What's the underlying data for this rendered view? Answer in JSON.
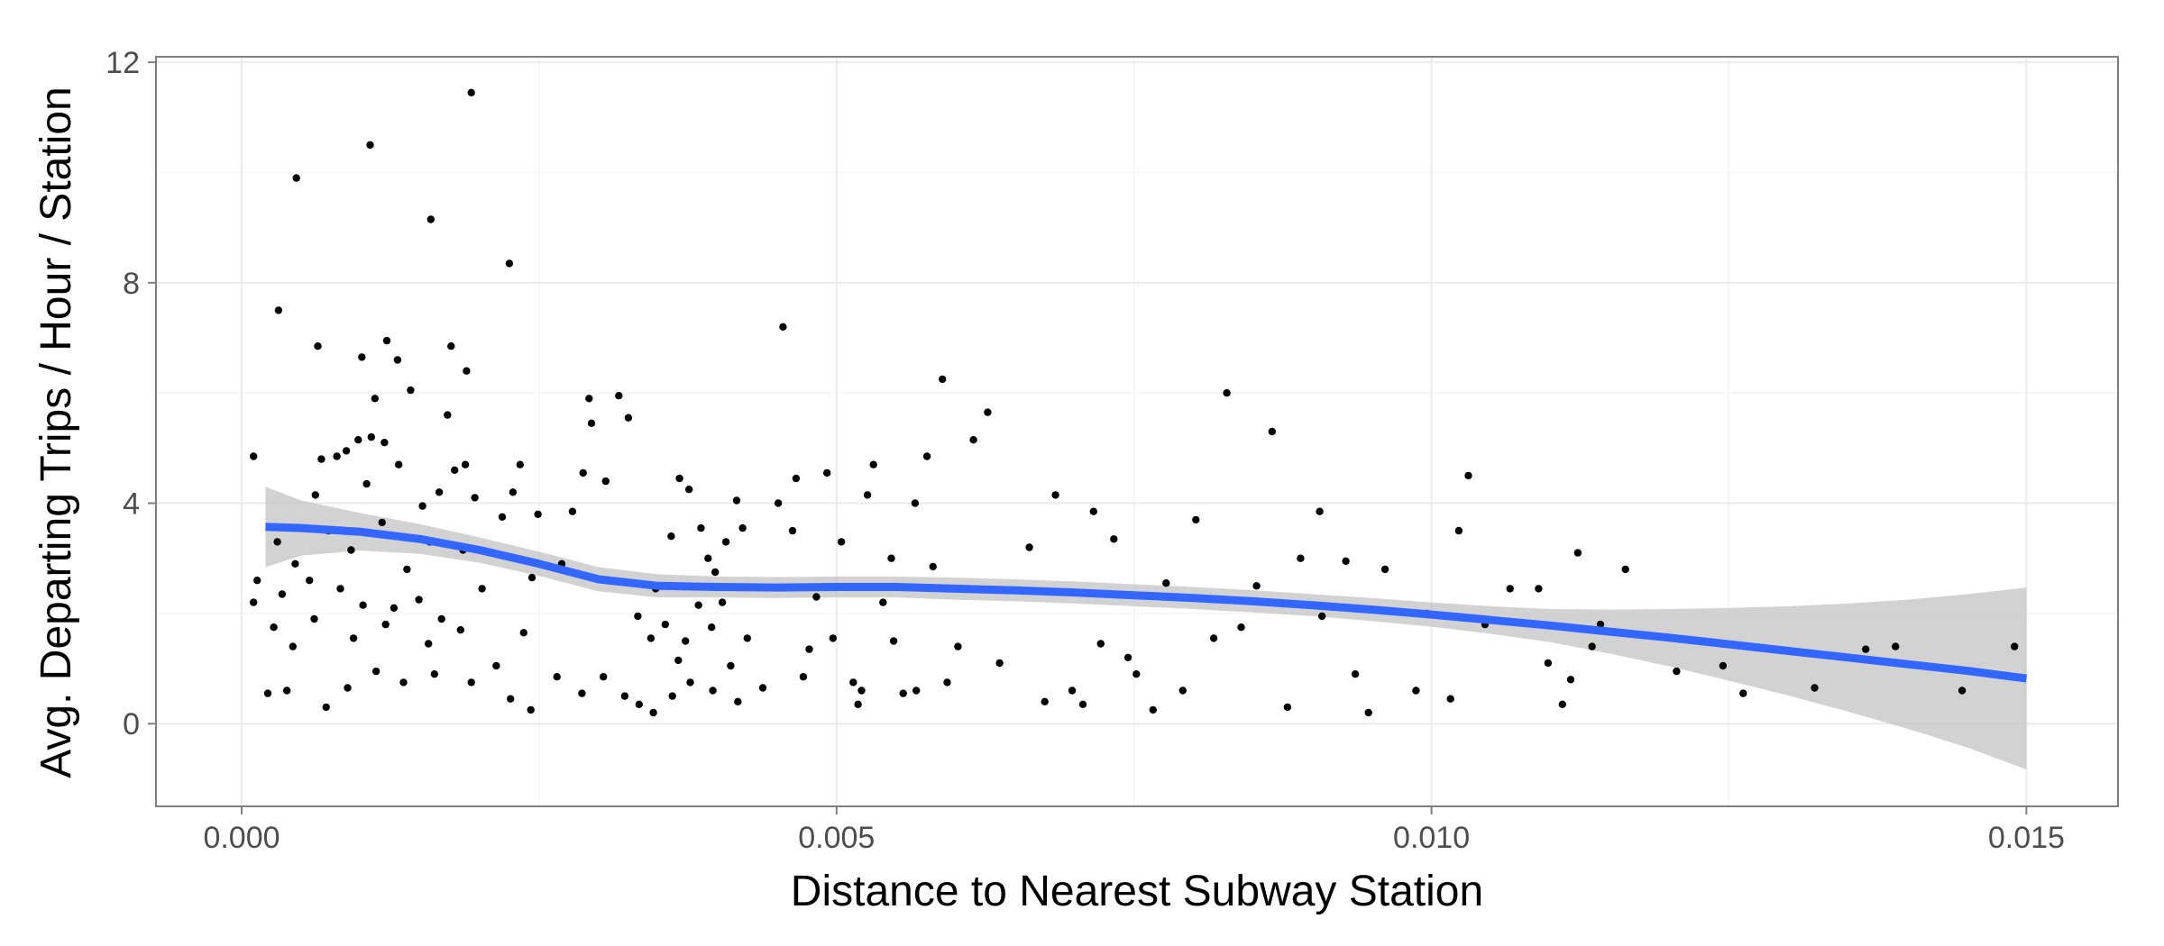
{
  "chart_data": {
    "type": "scatter",
    "title": "",
    "xlabel": "Distance to Nearest Subway Station",
    "ylabel": "Avg. Departing Trips / Hour / Station",
    "xlim": [
      -0.00072,
      0.01577
    ],
    "ylim": [
      -1.5,
      12.1
    ],
    "x_ticks": [
      0.0,
      0.005,
      0.01,
      0.015
    ],
    "x_tick_labels": [
      "0.000",
      "0.005",
      "0.010",
      "0.015"
    ],
    "y_ticks": [
      0,
      4,
      8,
      12
    ],
    "y_tick_labels": [
      "0",
      "4",
      "8",
      "12"
    ],
    "grid": true,
    "legend": "none",
    "colors": {
      "points": "#000000",
      "smooth_line": "#3366FF",
      "confidence_band": "#bfbfbf",
      "grid_major": "#ebebeb",
      "grid_minor": "#f5f5f5",
      "panel_border": "#7f7f7f"
    },
    "points": [
      [
        0.00046,
        9.9
      ],
      [
        0.00108,
        10.5
      ],
      [
        0.00193,
        11.45
      ],
      [
        0.00159,
        9.15
      ],
      [
        0.00225,
        8.35
      ],
      [
        0.00031,
        7.5
      ],
      [
        0.00064,
        6.85
      ],
      [
        0.00176,
        6.85
      ],
      [
        0.00122,
        6.95
      ],
      [
        0.00101,
        6.65
      ],
      [
        0.00131,
        6.6
      ],
      [
        0.00189,
        6.4
      ],
      [
        0.00112,
        5.9
      ],
      [
        0.00173,
        5.6
      ],
      [
        0.00294,
        5.45
      ],
      [
        0.00317,
        5.95
      ],
      [
        0.00292,
        5.9
      ],
      [
        0.00142,
        6.05
      ],
      [
        0.00325,
        5.55
      ],
      [
        0.0001,
        4.85
      ],
      [
        0.00067,
        4.8
      ],
      [
        0.0008,
        4.85
      ],
      [
        0.00088,
        4.95
      ],
      [
        0.00098,
        5.15
      ],
      [
        0.00109,
        5.2
      ],
      [
        0.0012,
        5.1
      ],
      [
        0.00132,
        4.7
      ],
      [
        0.00179,
        4.6
      ],
      [
        0.00188,
        4.7
      ],
      [
        0.00234,
        4.7
      ],
      [
        0.00287,
        4.55
      ],
      [
        0.00306,
        4.4
      ],
      [
        0.00062,
        4.15
      ],
      [
        0.00105,
        4.35
      ],
      [
        0.00152,
        3.95
      ],
      [
        0.00166,
        4.2
      ],
      [
        0.00196,
        4.1
      ],
      [
        0.00228,
        4.2
      ],
      [
        0.00249,
        3.8
      ],
      [
        0.00278,
        3.85
      ],
      [
        0.0003,
        3.3
      ],
      [
        0.00045,
        2.9
      ],
      [
        0.00073,
        3.5
      ],
      [
        0.00092,
        3.15
      ],
      [
        0.00118,
        3.65
      ],
      [
        0.00139,
        2.8
      ],
      [
        0.00158,
        3.3
      ],
      [
        0.00186,
        3.15
      ],
      [
        0.00219,
        3.75
      ],
      [
        0.00269,
        2.9
      ],
      [
        0.00013,
        2.6
      ],
      [
        0.00034,
        2.35
      ],
      [
        0.00057,
        2.6
      ],
      [
        0.00083,
        2.45
      ],
      [
        0.00102,
        2.15
      ],
      [
        0.00128,
        2.1
      ],
      [
        0.00149,
        2.25
      ],
      [
        0.00168,
        1.9
      ],
      [
        0.00202,
        2.45
      ],
      [
        0.00244,
        2.65
      ],
      [
        0.0001,
        2.2
      ],
      [
        0.00027,
        1.75
      ],
      [
        0.00043,
        1.4
      ],
      [
        0.00061,
        1.9
      ],
      [
        0.00094,
        1.55
      ],
      [
        0.00121,
        1.8
      ],
      [
        0.00157,
        1.45
      ],
      [
        0.00184,
        1.7
      ],
      [
        0.00214,
        1.05
      ],
      [
        0.00237,
        1.65
      ],
      [
        0.00022,
        0.55
      ],
      [
        0.00038,
        0.6
      ],
      [
        0.00071,
        0.3
      ],
      [
        0.00089,
        0.65
      ],
      [
        0.00113,
        0.95
      ],
      [
        0.00136,
        0.75
      ],
      [
        0.00162,
        0.9
      ],
      [
        0.00193,
        0.75
      ],
      [
        0.00226,
        0.45
      ],
      [
        0.00243,
        0.25
      ],
      [
        0.00265,
        0.85
      ],
      [
        0.00286,
        0.55
      ],
      [
        0.00304,
        0.85
      ],
      [
        0.00322,
        0.5
      ],
      [
        0.00334,
        0.35
      ],
      [
        0.00346,
        0.2
      ],
      [
        0.00362,
        0.5
      ],
      [
        0.00377,
        0.75
      ],
      [
        0.00396,
        0.6
      ],
      [
        0.00417,
        0.4
      ],
      [
        0.00348,
        2.45
      ],
      [
        0.00361,
        3.4
      ],
      [
        0.00368,
        4.45
      ],
      [
        0.00376,
        4.25
      ],
      [
        0.00386,
        3.55
      ],
      [
        0.00392,
        3.0
      ],
      [
        0.00398,
        2.75
      ],
      [
        0.00407,
        3.3
      ],
      [
        0.00416,
        4.05
      ],
      [
        0.00421,
        3.55
      ],
      [
        0.00333,
        1.95
      ],
      [
        0.00344,
        1.55
      ],
      [
        0.00356,
        1.8
      ],
      [
        0.00367,
        1.15
      ],
      [
        0.00373,
        1.5
      ],
      [
        0.00384,
        2.15
      ],
      [
        0.00395,
        1.75
      ],
      [
        0.00404,
        2.2
      ],
      [
        0.00411,
        1.05
      ],
      [
        0.00425,
        1.55
      ],
      [
        0.00438,
        0.65
      ],
      [
        0.00455,
        7.2
      ],
      [
        0.00466,
        4.45
      ],
      [
        0.00477,
        1.35
      ],
      [
        0.00492,
        4.55
      ],
      [
        0.00504,
        3.3
      ],
      [
        0.00518,
        0.35
      ],
      [
        0.00521,
        0.6
      ],
      [
        0.00531,
        4.7
      ],
      [
        0.00539,
        2.2
      ],
      [
        0.00548,
        1.5
      ],
      [
        0.00556,
        0.55
      ],
      [
        0.00567,
        0.6
      ],
      [
        0.00576,
        4.85
      ],
      [
        0.00581,
        2.85
      ],
      [
        0.00589,
        6.25
      ],
      [
        0.00602,
        1.4
      ],
      [
        0.00615,
        5.15
      ],
      [
        0.00627,
        5.65
      ],
      [
        0.00637,
        1.1
      ],
      [
        0.00451,
        4.0
      ],
      [
        0.00463,
        3.5
      ],
      [
        0.00472,
        0.85
      ],
      [
        0.00483,
        2.3
      ],
      [
        0.00497,
        1.55
      ],
      [
        0.00514,
        0.75
      ],
      [
        0.00526,
        4.15
      ],
      [
        0.00546,
        3.0
      ],
      [
        0.00566,
        4.0
      ],
      [
        0.00593,
        0.75
      ],
      [
        0.00662,
        3.2
      ],
      [
        0.00675,
        0.4
      ],
      [
        0.00684,
        4.15
      ],
      [
        0.00698,
        0.6
      ],
      [
        0.00707,
        0.35
      ],
      [
        0.00716,
        3.85
      ],
      [
        0.00722,
        1.45
      ],
      [
        0.00733,
        3.35
      ],
      [
        0.00745,
        1.2
      ],
      [
        0.00752,
        0.9
      ],
      [
        0.00766,
        0.25
      ],
      [
        0.00777,
        2.55
      ],
      [
        0.00791,
        0.6
      ],
      [
        0.00802,
        3.7
      ],
      [
        0.00817,
        1.55
      ],
      [
        0.00828,
        6.0
      ],
      [
        0.0084,
        1.75
      ],
      [
        0.00853,
        2.5
      ],
      [
        0.00866,
        5.3
      ],
      [
        0.00879,
        0.3
      ],
      [
        0.0089,
        3.0
      ],
      [
        0.00906,
        3.85
      ],
      [
        0.00928,
        2.95
      ],
      [
        0.00936,
        0.9
      ],
      [
        0.00947,
        0.2
      ],
      [
        0.00961,
        2.8
      ],
      [
        0.00987,
        0.6
      ],
      [
        0.01016,
        0.45
      ],
      [
        0.01023,
        3.5
      ],
      [
        0.01031,
        4.5
      ],
      [
        0.01045,
        1.8
      ],
      [
        0.01066,
        2.45
      ],
      [
        0.0109,
        2.45
      ],
      [
        0.01098,
        1.1
      ],
      [
        0.0111,
        0.35
      ],
      [
        0.01117,
        0.8
      ],
      [
        0.01123,
        3.1
      ],
      [
        0.01135,
        1.4
      ],
      [
        0.01142,
        1.8
      ],
      [
        0.01163,
        2.8
      ],
      [
        0.01206,
        0.95
      ],
      [
        0.01262,
        0.55
      ],
      [
        0.01322,
        0.65
      ],
      [
        0.01365,
        1.35
      ],
      [
        0.0139,
        1.4
      ],
      [
        0.01446,
        0.6
      ],
      [
        0.0149,
        1.4
      ],
      [
        0.01245,
        1.05
      ],
      [
        0.00996,
        2.0
      ],
      [
        0.00908,
        1.95
      ]
    ],
    "smooth_line": {
      "x": [
        0.0002,
        0.0005,
        0.001,
        0.0015,
        0.002,
        0.0025,
        0.003,
        0.0035,
        0.004,
        0.0045,
        0.005,
        0.0055,
        0.006,
        0.0065,
        0.007,
        0.0075,
        0.008,
        0.0085,
        0.009,
        0.0095,
        0.01,
        0.0105,
        0.011,
        0.0115,
        0.012,
        0.0125,
        0.013,
        0.0135,
        0.014,
        0.0145,
        0.015
      ],
      "y": [
        3.57,
        3.55,
        3.48,
        3.35,
        3.15,
        2.9,
        2.62,
        2.5,
        2.48,
        2.47,
        2.48,
        2.48,
        2.45,
        2.42,
        2.38,
        2.33,
        2.28,
        2.22,
        2.15,
        2.07,
        1.98,
        1.88,
        1.78,
        1.67,
        1.56,
        1.44,
        1.32,
        1.2,
        1.08,
        0.96,
        0.82
      ]
    },
    "confidence_band": {
      "x": [
        0.0002,
        0.0005,
        0.001,
        0.0015,
        0.002,
        0.0025,
        0.003,
        0.0035,
        0.004,
        0.0045,
        0.005,
        0.0055,
        0.006,
        0.0065,
        0.007,
        0.0075,
        0.008,
        0.0085,
        0.009,
        0.0095,
        0.01,
        0.0105,
        0.011,
        0.0115,
        0.012,
        0.0125,
        0.013,
        0.0135,
        0.014,
        0.0145,
        0.015
      ],
      "upper": [
        4.3,
        4.05,
        3.82,
        3.62,
        3.38,
        3.12,
        2.84,
        2.71,
        2.67,
        2.66,
        2.67,
        2.67,
        2.65,
        2.62,
        2.58,
        2.53,
        2.48,
        2.42,
        2.35,
        2.28,
        2.2,
        2.13,
        2.08,
        2.07,
        2.08,
        2.1,
        2.13,
        2.18,
        2.25,
        2.35,
        2.47
      ],
      "lower": [
        2.84,
        3.05,
        3.14,
        3.08,
        2.92,
        2.68,
        2.4,
        2.29,
        2.29,
        2.28,
        2.29,
        2.29,
        2.25,
        2.22,
        2.18,
        2.13,
        2.08,
        2.02,
        1.95,
        1.86,
        1.76,
        1.63,
        1.48,
        1.27,
        1.04,
        0.78,
        0.51,
        0.22,
        -0.09,
        -0.43,
        -0.83
      ]
    }
  }
}
